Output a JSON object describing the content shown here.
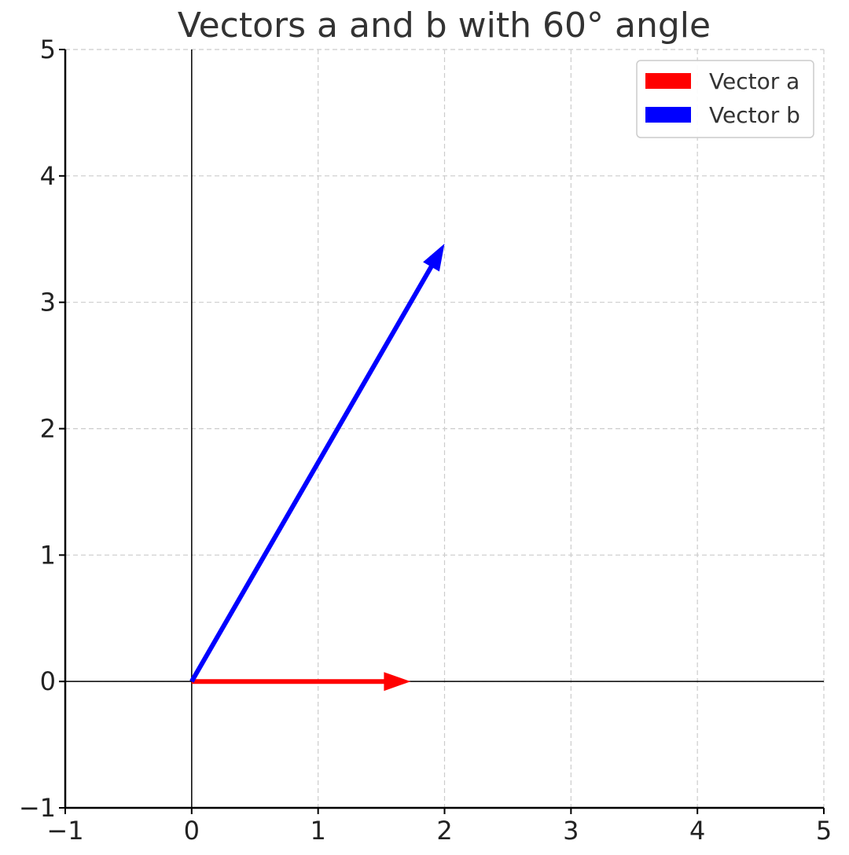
{
  "chart_data": {
    "type": "vector",
    "title": "Vectors a and b with 60° angle",
    "xlabel": "",
    "ylabel": "",
    "xlim": [
      -1,
      5
    ],
    "ylim": [
      -1,
      5
    ],
    "x_ticks": [
      -1,
      0,
      1,
      2,
      3,
      4,
      5
    ],
    "y_ticks": [
      -1,
      0,
      1,
      2,
      3,
      4,
      5
    ],
    "x_tick_labels": [
      "−1",
      "0",
      "1",
      "2",
      "3",
      "4",
      "5"
    ],
    "y_tick_labels": [
      "−1",
      "0",
      "1",
      "2",
      "3",
      "4",
      "5"
    ],
    "grid": true,
    "grid_style": "dashed",
    "legend_position": "top-right",
    "axes_lines_at_origin": true,
    "series": [
      {
        "name": "Vector a",
        "color": "#ff0000",
        "start": [
          0,
          0
        ],
        "end": [
          1.732,
          0
        ]
      },
      {
        "name": "Vector b",
        "color": "#0000ff",
        "start": [
          0,
          0
        ],
        "end": [
          2,
          3.464
        ]
      }
    ]
  }
}
